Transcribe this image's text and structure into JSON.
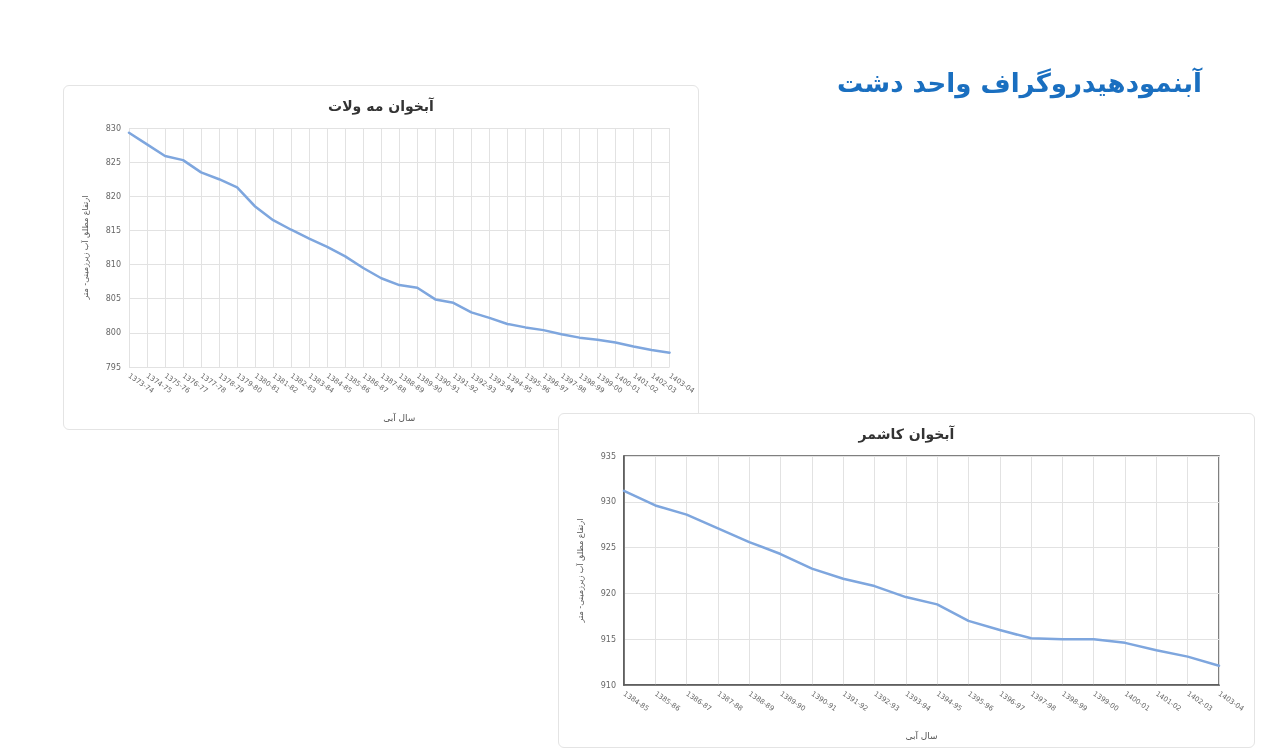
{
  "chart_data": [
    {
      "type": "line",
      "title": "آبخوان مه ولات",
      "xlabel": "سال آبی",
      "ylabel": "ارتفاع مطلق آب زیرزمینی- متر",
      "annotations": [
        "آبنمودهیدروگراف واحد دشت"
      ],
      "categories": [
        "1373-74",
        "1374-75",
        "1375-76",
        "1376-77",
        "1377-78",
        "1378-79",
        "1379-80",
        "1380-81",
        "1381-82",
        "1382-83",
        "1383-84",
        "1384-85",
        "1385-86",
        "1386-87",
        "1387-88",
        "1388-89",
        "1389-90",
        "1390-91",
        "1391-92",
        "1392-93",
        "1393-94",
        "1394-95",
        "1395-96",
        "1396-97",
        "1397-98",
        "1398-99",
        "1399-00",
        "1400-01",
        "1401-02",
        "1402-03",
        "1403-04"
      ],
      "series": [
        {
          "color": "#7ea6de",
          "values": [
            829.3,
            827.6,
            825.9,
            825.3,
            823.5,
            822.5,
            821.3,
            818.5,
            816.5,
            815.1,
            813.8,
            812.6,
            811.2,
            809.5,
            808.0,
            807.0,
            806.6,
            804.9,
            804.4,
            803.0,
            802.2,
            801.3,
            800.8,
            800.4,
            799.8,
            799.3,
            799.0,
            798.6,
            798.0,
            797.5,
            797.1
          ]
        }
      ],
      "ylim": [
        795,
        830
      ],
      "yticks": [
        795,
        800,
        805,
        810,
        815,
        820,
        825,
        830
      ],
      "grid": true,
      "marker": "none",
      "line_style": "solid"
    },
    {
      "type": "line",
      "title": "آبخوان کاشمر",
      "xlabel": "سال آبی",
      "ylabel": "ارتفاع مطلق آب زیرزمینی- متر",
      "categories": [
        "1384-85",
        "1385-86",
        "1386-87",
        "1387-88",
        "1388-89",
        "1389-90",
        "1390-91",
        "1391-92",
        "1392-93",
        "1393-94",
        "1394-95",
        "1395-96",
        "1396-97",
        "1397-98",
        "1398-99",
        "1399-00",
        "1400-01",
        "1401-02",
        "1402-03",
        "1403-04"
      ],
      "series": [
        {
          "color": "#7ea6de",
          "values": [
            931.2,
            929.6,
            928.6,
            927.1,
            925.6,
            924.3,
            922.7,
            921.6,
            920.8,
            919.6,
            918.8,
            917.0,
            916.0,
            915.1,
            915.0,
            915.0,
            914.6,
            913.8,
            913.1,
            912.1
          ]
        }
      ],
      "ylim": [
        910,
        935
      ],
      "yticks": [
        910,
        915,
        920,
        925,
        930,
        935
      ],
      "grid": true,
      "marker": "none",
      "line_style": "solid"
    }
  ]
}
